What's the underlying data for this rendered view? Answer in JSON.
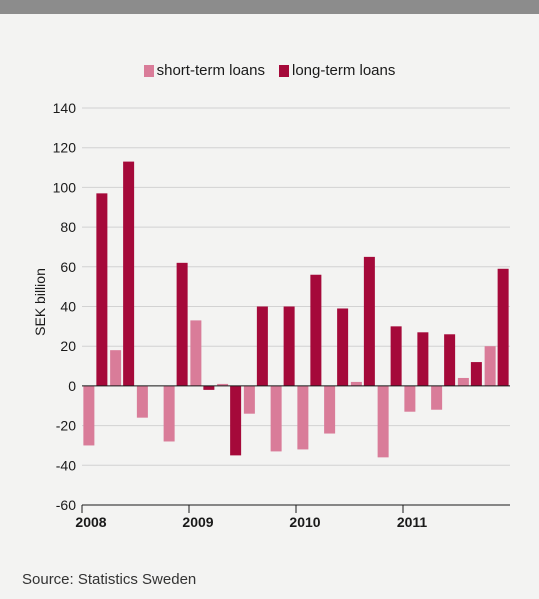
{
  "chart_data": {
    "type": "bar",
    "title": "",
    "xlabel": "",
    "ylabel": "SEK billion",
    "ylim": [
      -60,
      140
    ],
    "yticks": [
      140,
      120,
      100,
      80,
      60,
      40,
      20,
      0,
      -20,
      -40,
      -60
    ],
    "grid": true,
    "legend_position": "top-center",
    "year_labels": [
      "2008",
      "2009",
      "2010",
      "2011"
    ],
    "categories": [
      "2008Q1",
      "2008Q2",
      "2008Q3",
      "2008Q4",
      "2009Q1",
      "2009Q2",
      "2009Q3",
      "2009Q4",
      "2010Q1",
      "2010Q2",
      "2010Q3",
      "2010Q4",
      "2011Q1",
      "2011Q2",
      "2011Q3",
      "2011Q4"
    ],
    "series": [
      {
        "name": "short-term loans",
        "color": "#d97c99",
        "values": [
          -30,
          18,
          -16,
          -28,
          33,
          1,
          -14,
          -33,
          -32,
          -24,
          2,
          -36,
          -13,
          -12,
          4,
          20
        ]
      },
      {
        "name": "long-term loans",
        "color": "#a5093a",
        "values": [
          97,
          113,
          0,
          62,
          -2,
          -35,
          40,
          40,
          56,
          39,
          65,
          30,
          27,
          26,
          12,
          59
        ]
      }
    ]
  },
  "source": "Source: Statistics Sweden"
}
